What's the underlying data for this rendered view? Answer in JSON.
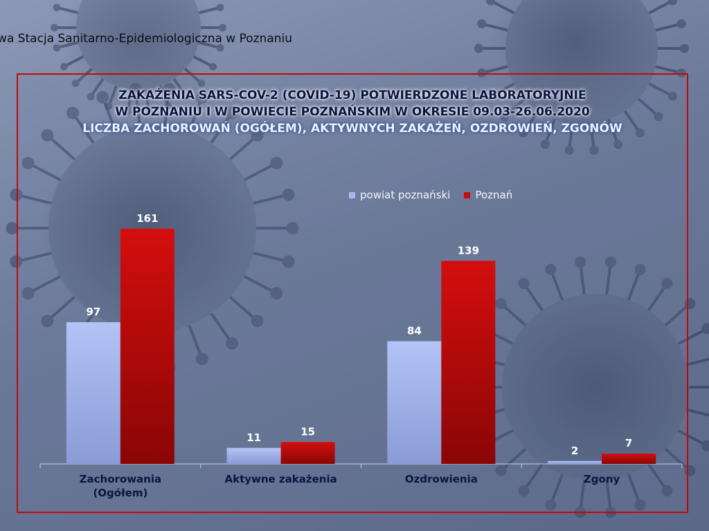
{
  "header": {
    "institution": "wa Stacja Sanitarno-Epidemiologiczna w Poznaniu"
  },
  "colors": {
    "powiat": "#a9b9ee",
    "poznan": "#c30c0c",
    "frame": "#c00a0a"
  },
  "chart_data": {
    "type": "bar",
    "title_lines": [
      "ZAKAŻENIA SARS-COV-2 (COVID-19) POTWIERDZONE LABORATORYJNIE",
      "W POZNANIU I W POWIECIE POZNAŃSKIM W OKRESIE 09.03-26.06.2020"
    ],
    "subtitle": "LICZBA ZACHOROWAŃ (OGÓŁEM), AKTYWNYCH ZAKAŻEŃ, OZDROWIEŃ, ZGONÓW",
    "categories": [
      [
        "Zachorowania",
        "(Ogółem)"
      ],
      [
        "Aktywne zakażenia"
      ],
      [
        "Ozdrowienia"
      ],
      [
        "Zgony"
      ]
    ],
    "series": [
      {
        "name": "powiat poznański",
        "values": [
          97,
          11,
          84,
          2
        ],
        "color": "#a9b9ee"
      },
      {
        "name": "Poznań",
        "values": [
          161,
          15,
          139,
          7
        ],
        "color": "#c30c0c"
      }
    ],
    "ylim": [
      0,
      180
    ],
    "grid": false,
    "legend_position": "top-right",
    "data_labels": true
  }
}
